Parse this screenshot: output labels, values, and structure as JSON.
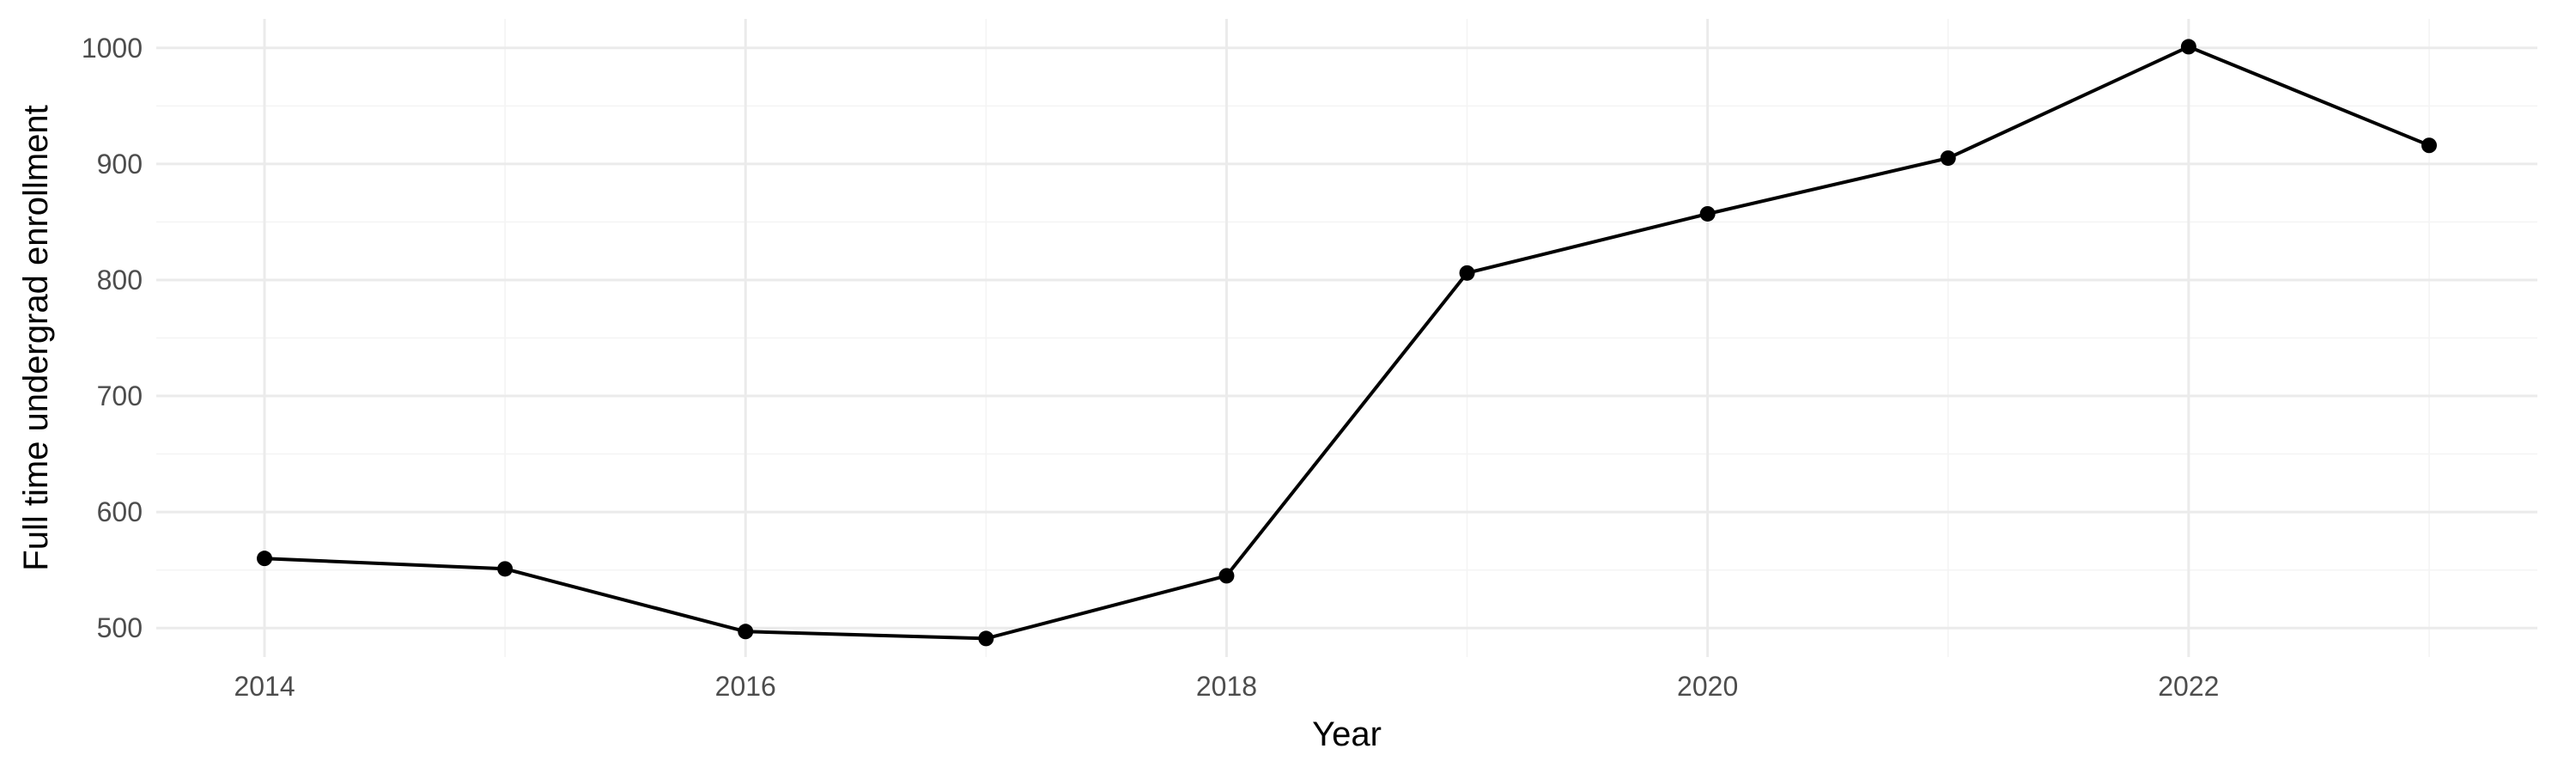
{
  "chart_data": {
    "type": "line",
    "title": "",
    "xlabel": "Year",
    "ylabel": "Full time undergrad enrollment",
    "x": [
      2014,
      2015,
      2016,
      2017,
      2018,
      2019,
      2020,
      2021,
      2022,
      2023
    ],
    "series": [
      {
        "values": [
          560,
          551,
          497,
          491,
          545,
          806,
          857,
          905,
          1001,
          916
        ]
      }
    ],
    "x_ticks": [
      "2014",
      "2016",
      "2018",
      "2020",
      "2022"
    ],
    "y_ticks": [
      "500",
      "600",
      "700",
      "800",
      "900",
      "1000"
    ],
    "xlim": [
      2013.55,
      2023.45
    ],
    "ylim": [
      475,
      1025
    ],
    "grid": true,
    "legend": "none",
    "colors": {
      "line": "#000000",
      "grid": "#ebebeb",
      "tick_text": "#4d4d4d"
    }
  }
}
